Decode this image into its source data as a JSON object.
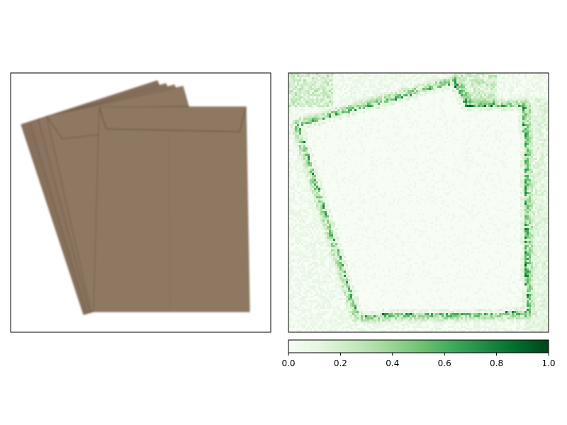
{
  "chart_data": [
    {
      "type": "image",
      "title": "",
      "panel": "left",
      "content": "envelopes"
    },
    {
      "type": "heatmap",
      "title": "",
      "panel": "right",
      "colormap": "Greens",
      "colorbar": {
        "orientation": "horizontal",
        "range": [
          0.0,
          1.0
        ],
        "ticks": [
          0.0,
          0.2,
          0.4,
          0.6,
          0.8,
          1.0
        ],
        "tick_labels": [
          "0.0",
          "0.2",
          "0.4",
          "0.6",
          "0.8",
          "1.0"
        ]
      }
    }
  ],
  "colors": {
    "envelope": "#8d7660",
    "envelope_edge": "#74604c",
    "greens_low": "#f7fcf5",
    "greens_high": "#00441b"
  }
}
